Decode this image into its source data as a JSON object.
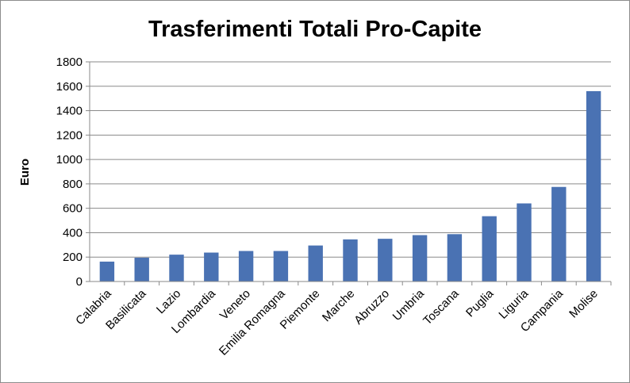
{
  "chart_data": {
    "type": "bar",
    "title": "Trasferimenti Totali Pro-Capite",
    "xlabel": "",
    "ylabel": "Euro",
    "ylim": [
      0,
      1800
    ],
    "yticks": [
      0,
      200,
      400,
      600,
      800,
      1000,
      1200,
      1400,
      1600,
      1800
    ],
    "grid": true,
    "legend": "none",
    "bar_color": "#4a72b3",
    "categories": [
      "Calabria",
      "Basilicata",
      "Lazio",
      "Lombardia",
      "Veneto",
      "Emilia Romagna",
      "Piemonte",
      "Marche",
      "Abruzzo",
      "Umbria",
      "Toscana",
      "Puglia",
      "Liguria",
      "Campania",
      "Molise"
    ],
    "values": [
      163,
      195,
      220,
      237,
      250,
      250,
      295,
      345,
      350,
      380,
      388,
      535,
      640,
      775,
      1560
    ]
  }
}
